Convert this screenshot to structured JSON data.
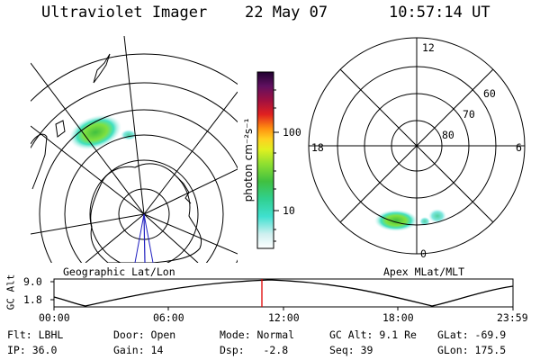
{
  "header": {
    "instrument": "Ultraviolet Imager",
    "date": "22 May 07",
    "time": "10:57:14 UT"
  },
  "geo_panel": {
    "label": "Geographic Lat/Lon"
  },
  "mag_panel": {
    "label": "Apex MLat/MLT",
    "mlt_labels": {
      "top": "12",
      "left": "18",
      "right": "6",
      "bottom": "0"
    },
    "lat_labels": [
      "60",
      "70",
      "80"
    ]
  },
  "colorbar": {
    "unit_label": "photon cm⁻²s⁻¹",
    "tick_labels": [
      "100",
      "10"
    ]
  },
  "orbit_plot": {
    "ylabel": "GC Alt",
    "y_ticks": [
      "9.0",
      "1.8"
    ],
    "x_ticks": [
      "00:00",
      "06:00",
      "12:00",
      "18:00",
      "23:59"
    ]
  },
  "info": {
    "flt": "Flt: LBHL",
    "door": "Door: Open",
    "mode": "Mode: Normal",
    "gc_alt": "GC Alt: 9.1 Re",
    "glat": "GLat: -69.9",
    "ip": "IP: 36.0",
    "gain": "Gain: 14",
    "dsp": "Dsp:   -2.8",
    "seq": "Seq: 39",
    "glon": "GLon: 175.5"
  },
  "colors": {
    "ut_marker": "#e00000",
    "nadir_line": "#2020c0"
  }
}
